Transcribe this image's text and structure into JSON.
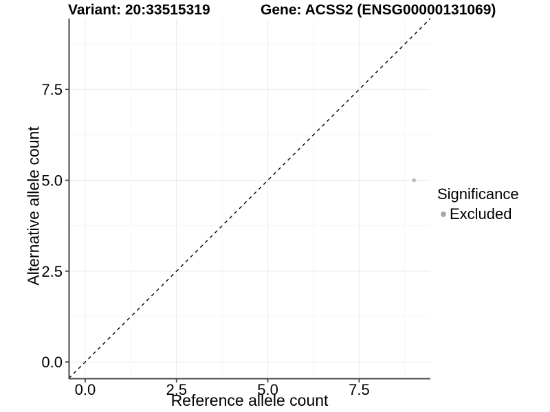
{
  "chart_data": {
    "type": "scatter",
    "title_left": "Variant: 20:33515319",
    "title_right": "Gene: ACSS2 (ENSG00000131069)",
    "xlabel": "Reference allele count",
    "ylabel": "Alternative allele count",
    "xlim": [
      -0.45,
      9.45
    ],
    "ylim": [
      -0.45,
      9.45
    ],
    "x_ticks": {
      "values": [
        0,
        2.5,
        5,
        7.5
      ],
      "labels": [
        "0.0",
        "2.5",
        "5.0",
        "7.5"
      ]
    },
    "y_ticks": {
      "values": [
        0,
        2.5,
        5,
        7.5
      ],
      "labels": [
        "0.0",
        "2.5",
        "5.0",
        "7.5"
      ]
    },
    "x_minor_ticks": [
      1.25,
      3.75,
      6.25,
      8.75
    ],
    "y_minor_ticks": [
      1.25,
      3.75,
      6.25,
      8.75
    ],
    "points": [
      {
        "x": 9,
        "y": 5,
        "series": "Excluded",
        "color": "#bebebe",
        "radius": 3
      }
    ],
    "identity_line": {
      "style": "dashed",
      "color": "#000000",
      "comment": "y = x reference line corner to corner"
    },
    "legend": {
      "title": "Significance",
      "position": "right",
      "items": [
        {
          "label": "Excluded",
          "color": "#a8a8a8"
        }
      ]
    },
    "grid": {
      "shown": true,
      "major_color": "#ececec",
      "minor_color": "#f5f5f5"
    },
    "colors": {
      "axis": "#464646",
      "text": "#000000",
      "background": "#ffffff"
    }
  }
}
